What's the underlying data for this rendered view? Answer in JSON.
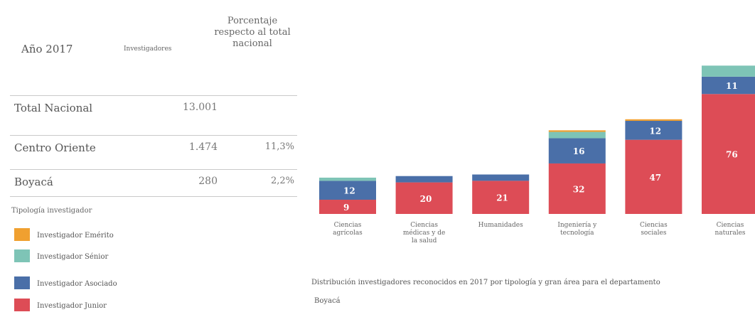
{
  "table": {
    "header_year": "Año 2017",
    "header_investigadores": "Investigadores",
    "header_pct": "Porcentaje respecto al total nacional",
    "rows": [
      {
        "name": "Total Nacional",
        "count": "13.001",
        "pct": ""
      },
      {
        "name": "Centro Oriente",
        "count": "1.474",
        "pct": "11,3%"
      },
      {
        "name": "Boyacá",
        "count": "280",
        "pct": "2,2%"
      }
    ]
  },
  "legend": {
    "title": "Tipología investigador",
    "items": [
      {
        "label": "Investigador Emérito",
        "color": "#f0a030"
      },
      {
        "label": "Investigador Sénior",
        "color": "#7ec4b6"
      },
      {
        "label": "Investigador Asociado",
        "color": "#4a6fa8"
      },
      {
        "label": "Investigador Junior",
        "color": "#dd4c56"
      }
    ]
  },
  "caption": {
    "line1": "Distribución investigadores reconocidos en 2017 por tipología y gran área para el departamento",
    "line2": "Boyacá"
  },
  "chart_data": {
    "type": "bar",
    "stacked": true,
    "categories": [
      "Ciencias agrícolas",
      "Ciencias médicas y de la salud",
      "Humanidades",
      "Ingeniería y tecnología",
      "Ciencias sociales",
      "Ciencias naturales"
    ],
    "category_lines": [
      [
        "Ciencias",
        "agrícolas"
      ],
      [
        "Ciencias",
        "médicas y de",
        "la salud"
      ],
      [
        "Humanidades"
      ],
      [
        "Ingeniería y",
        "tecnología"
      ],
      [
        "Ciencias",
        "sociales"
      ],
      [
        "Ciencias",
        "naturales"
      ]
    ],
    "series": [
      {
        "name": "Investigador Junior",
        "color": "#dd4c56",
        "values": [
          9,
          20,
          21,
          32,
          47,
          76
        ]
      },
      {
        "name": "Investigador Asociado",
        "color": "#4a6fa8",
        "values": [
          12,
          4,
          4,
          16,
          12,
          11
        ]
      },
      {
        "name": "Investigador Sénior",
        "color": "#7ec4b6",
        "values": [
          2,
          0,
          0,
          4,
          0,
          7
        ]
      },
      {
        "name": "Investigador Emérito",
        "color": "#f0a030",
        "values": [
          0,
          0,
          0,
          1,
          1,
          0
        ]
      }
    ],
    "value_labels": {
      "Investigador Junior": [
        "9",
        "20",
        "21",
        "32",
        "47",
        "76"
      ],
      "Investigador Asociado": [
        "12",
        "",
        "",
        "16",
        "12",
        "11"
      ]
    }
  }
}
